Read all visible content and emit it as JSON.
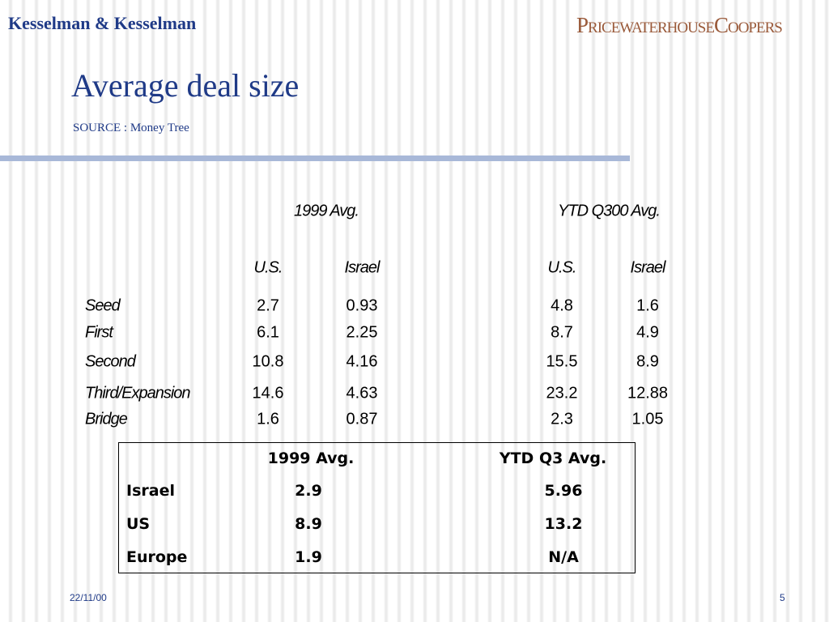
{
  "header": {
    "company": "Kesselman & Kesselman",
    "logo": "PricewaterhouseCoopers",
    "title": "Average deal size",
    "source": "SOURCE : Money Tree"
  },
  "table1": {
    "groups": [
      "1999 Avg.",
      "YTD Q300 Avg."
    ],
    "columns": [
      "U.S.",
      "Israel",
      "U.S.",
      "Israel"
    ],
    "rows": [
      [
        "Seed",
        2.7,
        0.93,
        4.8,
        1.6
      ],
      [
        "First",
        6.1,
        2.25,
        8.7,
        4.9
      ],
      [
        "Second",
        10.8,
        4.16,
        15.5,
        8.9
      ],
      [
        "Third/Expansion",
        14.6,
        4.63,
        23.2,
        12.88
      ],
      [
        "Bridge",
        1.6,
        0.87,
        2.3,
        1.05
      ]
    ]
  },
  "table2": {
    "columns": [
      "1999 Avg.",
      "YTD Q3 Avg."
    ],
    "rows": [
      [
        "Israel",
        2.9,
        5.96
      ],
      [
        "US",
        8.9,
        13.2
      ],
      [
        "Europe",
        1.9,
        "N/A"
      ]
    ]
  },
  "footer": {
    "date": "22/11/00",
    "page": "5"
  }
}
